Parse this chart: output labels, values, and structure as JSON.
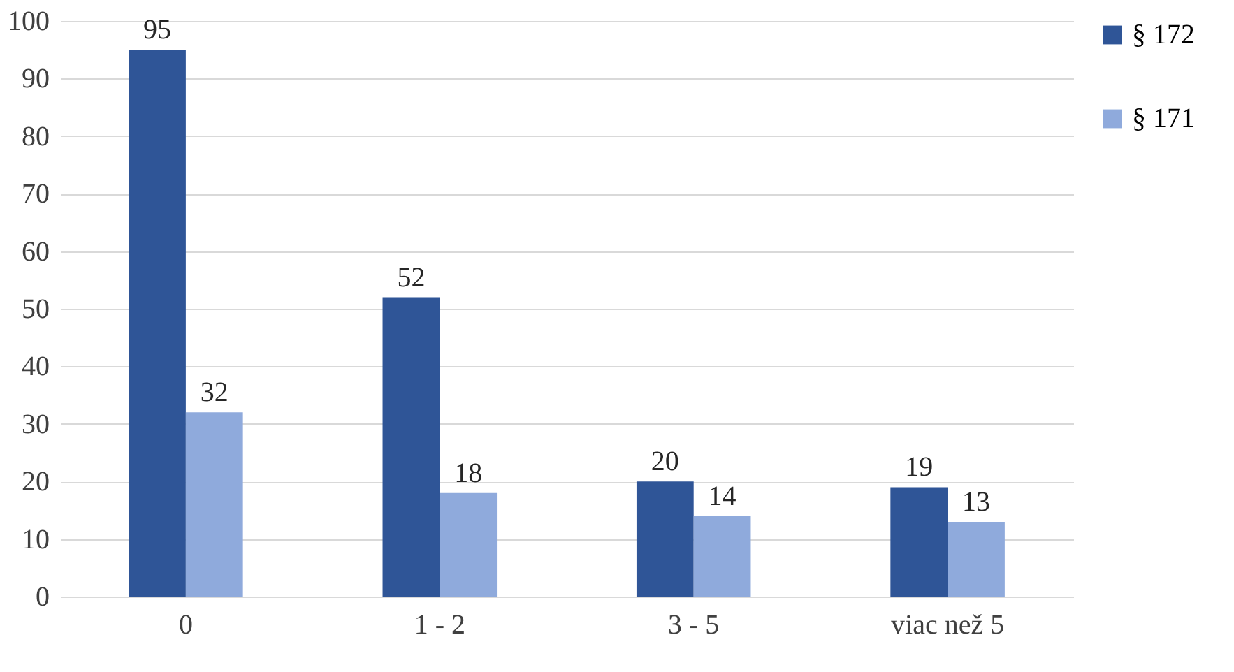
{
  "chart_data": {
    "type": "bar",
    "categories": [
      "0",
      "1 - 2",
      "3 - 5",
      "viac než 5"
    ],
    "series": [
      {
        "name": "§ 172",
        "color": "#2f5597",
        "values": [
          95,
          52,
          20,
          19
        ]
      },
      {
        "name": "§ 171",
        "color": "#8faadc",
        "values": [
          32,
          18,
          14,
          13
        ]
      }
    ],
    "ylim": [
      0,
      100
    ],
    "yticks": [
      0,
      10,
      20,
      30,
      40,
      50,
      60,
      70,
      80,
      90,
      100
    ],
    "grid": "y",
    "legend": "right",
    "data_labels": true
  }
}
